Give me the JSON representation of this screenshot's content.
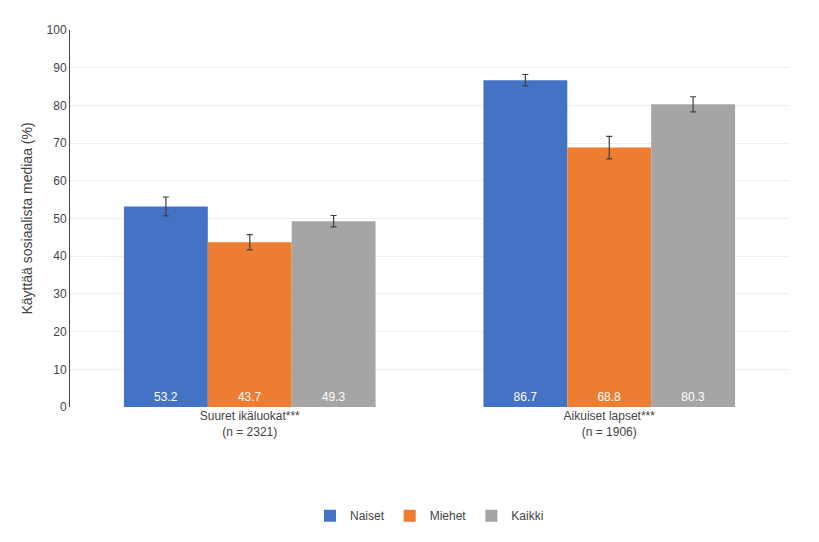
{
  "chart_data": {
    "type": "bar",
    "categories": [
      "Suuret ikäluokat***\n(n = 2321)",
      "Aikuiset lapset***\n(n = 1906)"
    ],
    "series": [
      {
        "name": "Naiset",
        "color": "#4472C4",
        "values": [
          53.2,
          86.7
        ],
        "errors": [
          2.5,
          1.5
        ]
      },
      {
        "name": "Miehet",
        "color": "#ED7D31",
        "values": [
          43.7,
          68.8
        ],
        "errors": [
          2.0,
          3.0
        ]
      },
      {
        "name": "Kaikki",
        "color": "#A5A5A5",
        "values": [
          49.3,
          80.3
        ],
        "errors": [
          1.5,
          2.0
        ]
      }
    ],
    "ylabel": "Käyttää sosiaalista mediaa (%)",
    "ylim": [
      0,
      100
    ],
    "yticks": [
      0,
      10,
      20,
      30,
      40,
      50,
      60,
      70,
      80,
      90,
      100
    ],
    "grid": true,
    "legend": "bottom",
    "data_labels": true
  }
}
